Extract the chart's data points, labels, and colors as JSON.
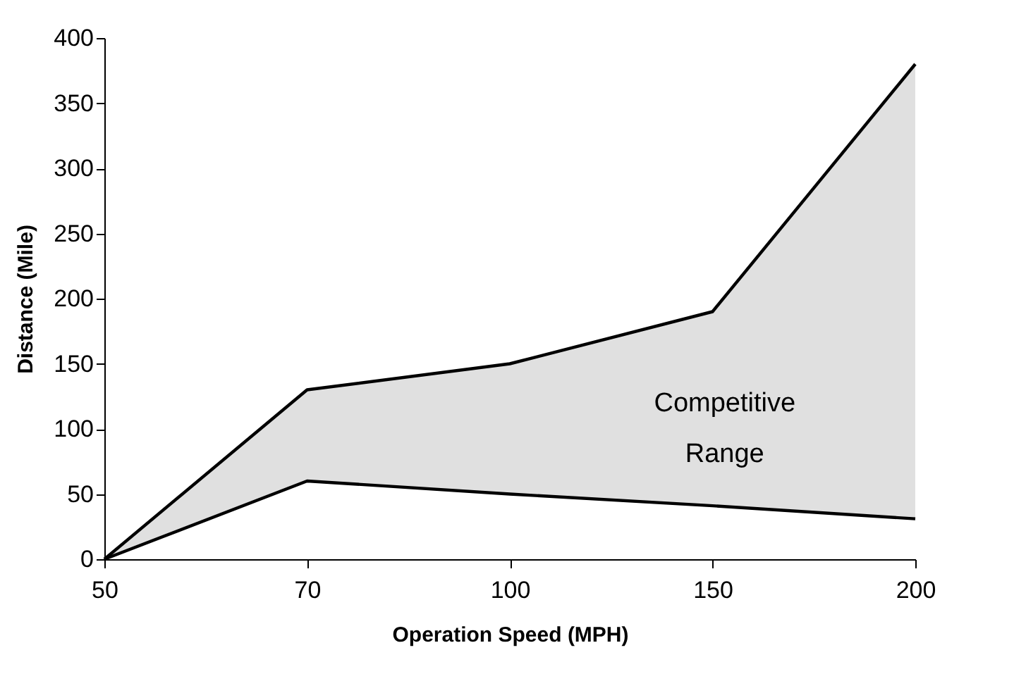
{
  "chart_data": {
    "type": "line",
    "xlabel": "Operation Speed (MPH)",
    "ylabel": "Distance (Mile)",
    "categories": [
      "50",
      "70",
      "100",
      "150",
      "200"
    ],
    "series": [
      {
        "color": "#000000",
        "values": [
          0,
          130,
          150,
          190,
          380
        ],
        "lower": [
          0,
          60,
          50,
          41,
          31
        ],
        "upper": [
          0,
          130,
          150,
          190,
          380
        ]
      },
      {
        "color": "#000000",
        "values": [
          0,
          60,
          50,
          41,
          31
        ]
      }
    ],
    "ylim": [
      0,
      400
    ],
    "yticks": [
      0,
      50,
      100,
      150,
      200,
      250,
      300,
      350,
      400
    ],
    "annotations": [
      "Competitive Range"
    ],
    "grid": false,
    "marker": "none",
    "line_style": "solid"
  }
}
